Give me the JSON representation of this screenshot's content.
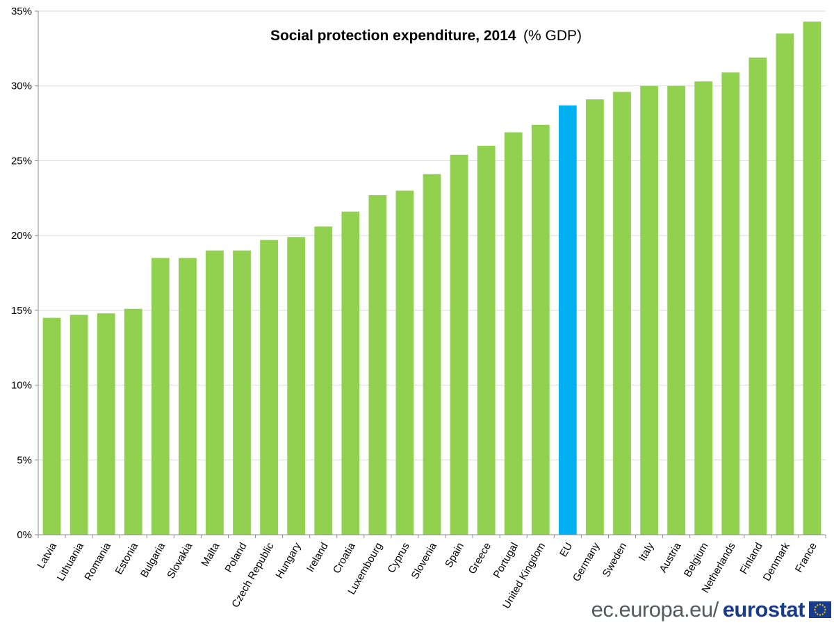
{
  "chart_data": {
    "type": "bar",
    "title": "Social protection expenditure, 2014",
    "title_unit": "(% GDP)",
    "xlabel": "",
    "ylabel": "",
    "ylim": [
      0,
      35
    ],
    "yticks": [
      0,
      5,
      10,
      15,
      20,
      25,
      30,
      35
    ],
    "ytick_labels": [
      "0%",
      "5%",
      "10%",
      "15%",
      "20%",
      "25%",
      "30%",
      "35%"
    ],
    "grid": true,
    "legend": "none",
    "categories": [
      "Latvia",
      "Lithuania",
      "Romania",
      "Estonia",
      "Bulgaria",
      "Slovakia",
      "Malta",
      "Poland",
      "Czech Republic",
      "Hungary",
      "Ireland",
      "Croatia",
      "Luxembourg",
      "Cyprus",
      "Slovenia",
      "Spain",
      "Greece",
      "Portugal",
      "United Kingdom",
      "EU",
      "Germany",
      "Sweden",
      "Italy",
      "Austria",
      "Belgium",
      "Netherlands",
      "Finland",
      "Denmark",
      "France"
    ],
    "values": [
      14.5,
      14.7,
      14.8,
      15.1,
      18.5,
      18.5,
      19.0,
      19.0,
      19.7,
      19.9,
      20.6,
      21.6,
      22.7,
      23.0,
      24.1,
      25.4,
      26.0,
      26.9,
      27.4,
      28.7,
      29.1,
      29.6,
      30.0,
      30.0,
      30.3,
      30.9,
      31.9,
      33.5,
      34.3
    ],
    "highlight_category": "EU",
    "colors": {
      "bar": "#92d050",
      "highlight": "#00b0f0",
      "grid": "#d9d9d9",
      "axis": "#8c8c8c"
    }
  },
  "footer": {
    "url": "ec.europa.eu/",
    "brand": "eurostat",
    "flag_icon": "eu-flag-icon"
  }
}
